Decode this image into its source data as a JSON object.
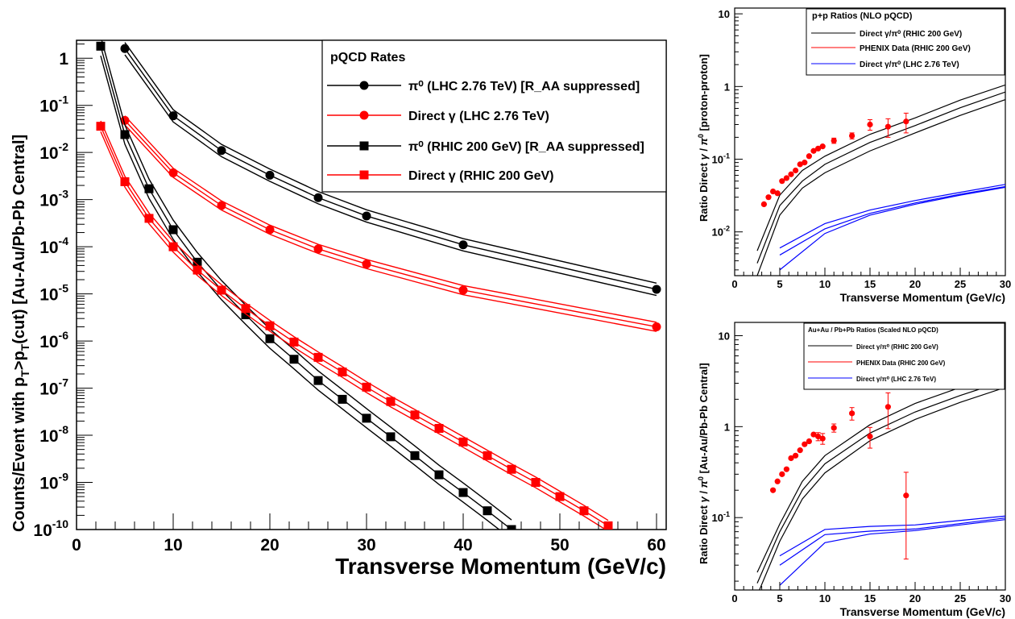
{
  "chart_data": [
    {
      "id": "main",
      "type": "line",
      "xlabel": "Transverse Momentum (GeV/c)",
      "ylabel": "Counts/Event with p_T>p_T(cut) [Au-Au/Pb-Pb Central]",
      "xlim": [
        0,
        61
      ],
      "ylim": [
        1e-10,
        2.4
      ],
      "yscale": "log",
      "x_ticks": [
        "0",
        "10",
        "20",
        "30",
        "40",
        "50",
        "60"
      ],
      "y_ticks": [
        "1",
        "10^-1",
        "10^-2",
        "10^-3",
        "10^-4",
        "10^-5",
        "10^-6",
        "10^-7",
        "10^-8",
        "10^-9",
        "10^-10"
      ],
      "legend": {
        "title": "pQCD Rates",
        "position": "top-right",
        "entries": [
          "π⁰ (LHC 2.76 TeV) [R_AA suppressed]",
          "Direct γ (LHC 2.76 TeV)",
          "π⁰ (RHIC 200 GeV) [R_AA suppressed]",
          "Direct γ (RHIC 200 GeV)"
        ]
      },
      "series": [
        {
          "name": "π⁰ (LHC 2.76 TeV) [R_AA suppressed]",
          "color": "#000000",
          "marker": "circle",
          "x": [
            5,
            10,
            15,
            20,
            25,
            30,
            40,
            60
          ],
          "y": [
            1.6,
            0.06,
            0.011,
            0.0033,
            0.0011,
            0.00045,
            0.00011,
            1.25e-05
          ],
          "band_factor": 1.35
        },
        {
          "name": "Direct γ (LHC 2.76 TeV)",
          "color": "#ff0000",
          "marker": "circle",
          "x": [
            5,
            10,
            15,
            20,
            25,
            30,
            40,
            60
          ],
          "y": [
            0.048,
            0.0037,
            0.00075,
            0.00023,
            9e-05,
            4.3e-05,
            1.2e-05,
            2e-06
          ],
          "band_factor": 1.25
        },
        {
          "name": "π⁰ (RHIC 200 GeV) [R_AA suppressed]",
          "color": "#000000",
          "marker": "square",
          "x": [
            2.5,
            5,
            7.5,
            10,
            12.5,
            15,
            17.5,
            20,
            22.5,
            25,
            27.5,
            30,
            32.5,
            35,
            37.5,
            40,
            42.5,
            45
          ],
          "y": [
            1.8,
            0.024,
            0.0017,
            0.00023,
            4.7e-05,
            1.2e-05,
            3.6e-06,
            1.12e-06,
            4.1e-07,
            1.45e-07,
            5.8e-08,
            2.3e-08,
            9.3e-09,
            3.7e-09,
            1.45e-09,
            6.1e-10,
            2.5e-10,
            1e-10
          ],
          "band_factor": 1.6
        },
        {
          "name": "Direct γ (RHIC 200 GeV)",
          "color": "#ff0000",
          "marker": "square",
          "x": [
            2.5,
            5,
            7.5,
            10,
            12.5,
            15,
            17.5,
            20,
            22.5,
            25,
            27.5,
            30,
            32.5,
            35,
            37.5,
            40,
            42.5,
            45,
            47.5,
            50,
            52.5,
            55
          ],
          "y": [
            0.036,
            0.0024,
            0.0004,
            0.0001,
            3.2e-05,
            1.2e-05,
            4.9e-06,
            2.1e-06,
            9.5e-07,
            4.5e-07,
            2.2e-07,
            1.05e-07,
            5.2e-08,
            2.7e-08,
            1.4e-08,
            7.2e-09,
            3.7e-09,
            1.9e-09,
            1e-09,
            5e-10,
            2.5e-10,
            1.2e-10
          ],
          "band_factor": 1.3
        }
      ]
    },
    {
      "id": "top-right",
      "type": "line",
      "xlabel": "Transverse Momentum (GeV/c)",
      "ylabel": "Ratio Direct γ / π⁰ [proton-proton]",
      "xlim": [
        0,
        30
      ],
      "ylim": [
        0.0025,
        12
      ],
      "yscale": "log",
      "x_ticks": [
        "0",
        "5",
        "10",
        "15",
        "20",
        "25",
        "30"
      ],
      "y_ticks": [
        "10",
        "1",
        "10^-1",
        "10^-2"
      ],
      "legend": {
        "title": "p+p Ratios (NLO pQCD)",
        "position": "top-right",
        "entries": [
          "Direct γ/π⁰ (RHIC 200 GeV)",
          "PHENIX Data (RHIC 200 GeV)",
          "Direct γ/π⁰ (LHC 2.76 TeV)"
        ]
      },
      "curves": [
        {
          "color": "#000000",
          "x": [
            2.5,
            5,
            7.5,
            10,
            15,
            20,
            25,
            30
          ],
          "y": [
            0.0055,
            0.032,
            0.07,
            0.11,
            0.22,
            0.37,
            0.65,
            1.05
          ]
        },
        {
          "color": "#000000",
          "x": [
            2.5,
            5,
            7.5,
            10,
            15,
            20,
            25,
            30
          ],
          "y": [
            0.0037,
            0.023,
            0.05,
            0.085,
            0.17,
            0.29,
            0.51,
            0.84
          ]
        },
        {
          "color": "#000000",
          "x": [
            2.5,
            5,
            7.5,
            10,
            15,
            20,
            25,
            30
          ],
          "y": [
            0.0025,
            0.017,
            0.04,
            0.065,
            0.13,
            0.23,
            0.4,
            0.66
          ]
        },
        {
          "color": "#0000ff",
          "x": [
            5,
            10,
            15,
            20,
            25,
            30
          ],
          "y": [
            0.006,
            0.013,
            0.02,
            0.027,
            0.035,
            0.045
          ]
        },
        {
          "color": "#0000ff",
          "x": [
            5,
            10,
            15,
            20,
            25,
            30
          ],
          "y": [
            0.0048,
            0.011,
            0.018,
            0.025,
            0.033,
            0.042
          ]
        },
        {
          "color": "#0000ff",
          "x": [
            5,
            10,
            15,
            20,
            25,
            30
          ],
          "y": [
            0.003,
            0.0095,
            0.017,
            0.024,
            0.032,
            0.041
          ]
        }
      ],
      "data_points": {
        "name": "PHENIX Data (RHIC 200 GeV)",
        "color": "#ff0000",
        "x": [
          3.25,
          3.75,
          4.25,
          4.75,
          5.25,
          5.75,
          6.25,
          6.75,
          7.25,
          7.75,
          8.25,
          8.75,
          9.25,
          9.75,
          11,
          13,
          15,
          17,
          19
        ],
        "y": [
          0.024,
          0.03,
          0.036,
          0.034,
          0.05,
          0.055,
          0.062,
          0.07,
          0.085,
          0.09,
          0.11,
          0.13,
          0.14,
          0.15,
          0.18,
          0.21,
          0.3,
          0.28,
          0.33
        ],
        "err": [
          0,
          0,
          0,
          0,
          0,
          0,
          0,
          0,
          0,
          0,
          0,
          0,
          0,
          0,
          0.015,
          0.02,
          0.05,
          0.08,
          0.1
        ]
      }
    },
    {
      "id": "bottom-right",
      "type": "line",
      "xlabel": "Transverse Momentum (GeV/c)",
      "ylabel": "Ratio Direct γ / π⁰ [Au-Au/Pb-Pb Central]",
      "xlim": [
        0,
        30
      ],
      "ylim": [
        0.016,
        14
      ],
      "yscale": "log",
      "x_ticks": [
        "0",
        "5",
        "10",
        "15",
        "20",
        "25",
        "30"
      ],
      "y_ticks": [
        "10",
        "1",
        "10^-1"
      ],
      "legend": {
        "title": "Au+Au / Pb+Pb Ratios (Scaled NLO pQCD)",
        "position": "top-right",
        "entries": [
          "Direct γ/π⁰ (RHIC 200 GeV)",
          "PHENIX Data (RHIC 200 GeV)",
          "Direct γ/π⁰ (LHC 2.76 TeV)"
        ]
      },
      "curves": [
        {
          "color": "#000000",
          "x": [
            2.5,
            5,
            7.5,
            10,
            15,
            20,
            25,
            30
          ],
          "y": [
            0.025,
            0.085,
            0.25,
            0.48,
            1.05,
            1.8,
            2.7,
            3.9
          ]
        },
        {
          "color": "#000000",
          "x": [
            2.5,
            5,
            7.5,
            10,
            15,
            20,
            25,
            30
          ],
          "y": [
            0.019,
            0.07,
            0.2,
            0.39,
            0.85,
            1.45,
            2.2,
            3.2
          ]
        },
        {
          "color": "#000000",
          "x": [
            2.5,
            5,
            7.5,
            10,
            15,
            20,
            25,
            30
          ],
          "y": [
            0.014,
            0.055,
            0.16,
            0.31,
            0.7,
            1.2,
            1.85,
            2.7
          ]
        },
        {
          "color": "#0000ff",
          "x": [
            5,
            10,
            15,
            20,
            25,
            30
          ],
          "y": [
            0.038,
            0.074,
            0.08,
            0.083,
            0.093,
            0.104
          ]
        },
        {
          "color": "#0000ff",
          "x": [
            5,
            10,
            15,
            20,
            25,
            30
          ],
          "y": [
            0.03,
            0.065,
            0.071,
            0.075,
            0.086,
            0.099
          ]
        },
        {
          "color": "#0000ff",
          "x": [
            5,
            10,
            15,
            20,
            25,
            30
          ],
          "y": [
            0.018,
            0.053,
            0.066,
            0.072,
            0.083,
            0.095
          ]
        }
      ],
      "data_points": {
        "name": "PHENIX Data (RHIC 200 GeV)",
        "color": "#ff0000",
        "x": [
          4.25,
          4.75,
          5.25,
          5.75,
          6.25,
          6.75,
          7.25,
          7.75,
          8.25,
          8.75,
          9.25,
          9.75,
          11,
          13,
          15,
          17,
          19
        ],
        "y": [
          0.2,
          0.25,
          0.3,
          0.34,
          0.45,
          0.48,
          0.55,
          0.64,
          0.69,
          0.82,
          0.78,
          0.74,
          0.97,
          1.4,
          0.78,
          1.65,
          0.175
        ],
        "err_lo": [
          0,
          0,
          0,
          0,
          0,
          0,
          0,
          0,
          0,
          0,
          0.08,
          0.1,
          0.1,
          0.22,
          0.2,
          0.7,
          0.14
        ],
        "err_hi": [
          0,
          0,
          0,
          0,
          0,
          0,
          0,
          0,
          0,
          0,
          0.08,
          0.1,
          0.1,
          0.22,
          0.2,
          0.7,
          0.14
        ]
      }
    }
  ]
}
